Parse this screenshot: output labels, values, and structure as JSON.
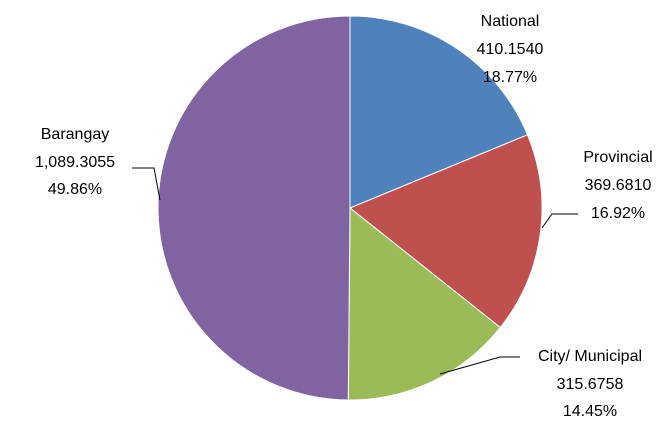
{
  "chart_data": {
    "type": "pie",
    "categories": [
      "National",
      "Provincial",
      "City/ Municipal",
      "Barangay"
    ],
    "values": [
      410.154,
      369.681,
      315.6758,
      1089.3055
    ],
    "value_labels": [
      "410.1540",
      "369.6810",
      "315.6758",
      "1,089.3055"
    ],
    "percent_labels": [
      "18.77%",
      "16.92%",
      "14.45%",
      "49.86%"
    ],
    "colors": [
      "#4f81bd",
      "#c0504d",
      "#9bbb59",
      "#8064a2"
    ]
  }
}
